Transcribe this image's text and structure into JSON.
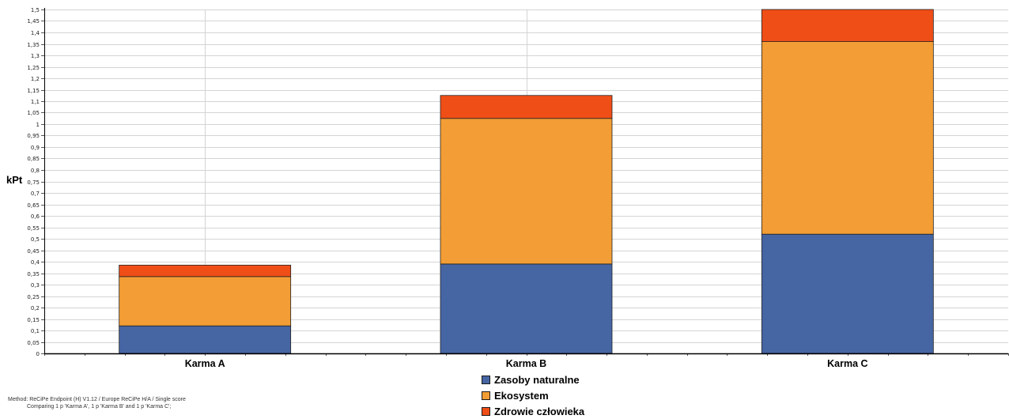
{
  "chart_data": {
    "type": "bar",
    "stacked": true,
    "ylabel": "kPt",
    "ylim": [
      0,
      1.5
    ],
    "ytick_step": 0.05,
    "categories": [
      "Karma A",
      "Karma B",
      "Karma C"
    ],
    "series": [
      {
        "name": "Zasoby naturalne",
        "color": "#4665a3",
        "values": [
          0.12,
          0.39,
          0.52
        ]
      },
      {
        "name": "Ekosystem",
        "color": "#f29d35",
        "values": [
          0.215,
          0.635,
          0.84
        ]
      },
      {
        "name": "Zdrowie człowieka",
        "color": "#f04e17",
        "values": [
          0.05,
          0.1,
          0.14
        ]
      }
    ],
    "grid": true,
    "legend_position": "bottom-center"
  },
  "footnote": {
    "line1": "Method: ReCiPe Endpoint (H) V1.12 / Europe ReCiPe H/A / Single score",
    "line2": "Comparing 1 p 'Karma A', 1 p 'Karma B' and 1 p 'Karma C';"
  }
}
